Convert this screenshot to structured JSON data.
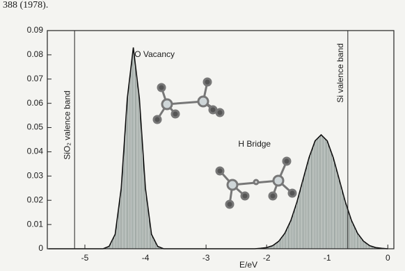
{
  "page_text": "388 (1978).",
  "chart_data": {
    "type": "line",
    "x_label": "E/eV",
    "x": [
      -5.6,
      -4.7,
      -4.6,
      -4.5,
      -4.4,
      -4.3,
      -4.2,
      -4.1,
      -4.0,
      -3.9,
      -3.8,
      -3.7,
      -2.2,
      -2.1,
      -2.0,
      -1.9,
      -1.8,
      -1.7,
      -1.6,
      -1.5,
      -1.4,
      -1.3,
      -1.2,
      -1.1,
      -1.0,
      -0.9,
      -0.8,
      -0.7,
      -0.6,
      -0.5,
      -0.4,
      -0.3,
      -0.2,
      -0.1,
      0.0
    ],
    "series": [
      {
        "color": "#111111",
        "fill": "#7d8a86",
        "values": [
          0,
          0,
          0.001,
          0.006,
          0.025,
          0.062,
          0.083,
          0.062,
          0.025,
          0.006,
          0.001,
          0,
          0,
          0.0002,
          0.0005,
          0.0013,
          0.0031,
          0.0064,
          0.0117,
          0.0193,
          0.0285,
          0.0376,
          0.0445,
          0.047,
          0.0445,
          0.0376,
          0.0285,
          0.0193,
          0.0117,
          0.0064,
          0.0031,
          0.0013,
          0.0005,
          0.0002,
          0
        ]
      }
    ],
    "vlines": [
      {
        "value": -5.17,
        "label": "SiO₂ valence band"
      },
      {
        "value": -0.66,
        "label": "Si valence band"
      }
    ],
    "annotations": [
      {
        "text": "O Vacancy",
        "x": -3.85,
        "y": 0.08
      },
      {
        "text": "H Bridge",
        "x": -2.2,
        "y": 0.043
      }
    ],
    "xlim": [
      -5.62,
      0.1
    ],
    "ylim": [
      0,
      0.09
    ],
    "xticks": [
      -5,
      -4,
      -3,
      -2,
      -1,
      0
    ],
    "yticks": [
      0,
      0.01,
      0.02,
      0.03,
      0.04,
      0.05,
      0.06,
      0.07,
      0.08,
      0.09
    ],
    "grid": false
  }
}
